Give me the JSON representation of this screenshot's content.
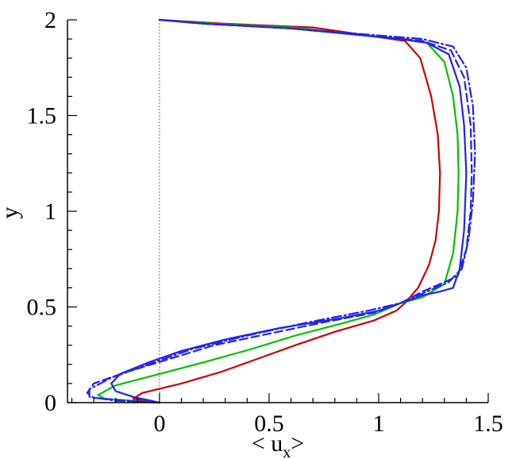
{
  "chart_data": {
    "type": "line",
    "title": "",
    "xlabel": "< u",
    "xlabel_sub": "x",
    "xlabel_close": ">",
    "ylabel": "y",
    "xlim": [
      -0.42,
      1.5
    ],
    "ylim": [
      0,
      2
    ],
    "x_ticks": [
      0,
      0.5,
      1,
      1.5
    ],
    "x_tick_labels": [
      "0",
      "0.5",
      "1",
      "1.5"
    ],
    "y_ticks": [
      0,
      0.5,
      1,
      1.5,
      2
    ],
    "y_tick_labels": [
      "0",
      "0.5",
      "1",
      "1.5",
      "2"
    ],
    "grid": false,
    "zero_line": {
      "x": 0,
      "color": "#888888",
      "style": "dotted"
    },
    "series": [
      {
        "color": "#cc0000",
        "dash": "solid",
        "points": [
          [
            0,
            0
          ],
          [
            -0.12,
            0.02
          ],
          [
            -0.08,
            0.05
          ],
          [
            0.1,
            0.1
          ],
          [
            0.28,
            0.16
          ],
          [
            0.45,
            0.23
          ],
          [
            0.62,
            0.3
          ],
          [
            0.8,
            0.37
          ],
          [
            0.98,
            0.43
          ],
          [
            1.08,
            0.48
          ],
          [
            1.12,
            0.52
          ],
          [
            1.18,
            0.6
          ],
          [
            1.23,
            0.72
          ],
          [
            1.26,
            0.85
          ],
          [
            1.275,
            1.0
          ],
          [
            1.28,
            1.2
          ],
          [
            1.27,
            1.4
          ],
          [
            1.24,
            1.6
          ],
          [
            1.19,
            1.8
          ],
          [
            1.12,
            1.89
          ],
          [
            0.7,
            1.96
          ],
          [
            0.3,
            1.98
          ],
          [
            0,
            2
          ]
        ]
      },
      {
        "color": "#00c000",
        "dash": "solid",
        "points": [
          [
            0,
            0
          ],
          [
            -0.25,
            0.02
          ],
          [
            -0.28,
            0.04
          ],
          [
            -0.2,
            0.09
          ],
          [
            0.0,
            0.15
          ],
          [
            0.2,
            0.21
          ],
          [
            0.42,
            0.28
          ],
          [
            0.62,
            0.35
          ],
          [
            0.82,
            0.41
          ],
          [
            0.98,
            0.46
          ],
          [
            1.1,
            0.52
          ],
          [
            1.2,
            0.55
          ],
          [
            1.3,
            0.62
          ],
          [
            1.34,
            0.78
          ],
          [
            1.36,
            1.0
          ],
          [
            1.365,
            1.2
          ],
          [
            1.36,
            1.4
          ],
          [
            1.34,
            1.6
          ],
          [
            1.3,
            1.78
          ],
          [
            1.22,
            1.88
          ],
          [
            1.1,
            1.9
          ],
          [
            0.6,
            1.96
          ],
          [
            0.25,
            1.98
          ],
          [
            0,
            2
          ]
        ]
      },
      {
        "color": "#2222ee",
        "dash": "solid",
        "points": [
          [
            0,
            0
          ],
          [
            -0.12,
            0.03
          ],
          [
            -0.2,
            0.06
          ],
          [
            -0.22,
            0.1
          ],
          [
            -0.18,
            0.15
          ],
          [
            -0.05,
            0.21
          ],
          [
            0.1,
            0.27
          ],
          [
            0.3,
            0.33
          ],
          [
            0.55,
            0.39
          ],
          [
            0.82,
            0.44
          ],
          [
            1.0,
            0.48
          ],
          [
            1.1,
            0.52
          ],
          [
            1.2,
            0.56
          ],
          [
            1.28,
            0.58
          ],
          [
            1.34,
            0.6
          ],
          [
            1.37,
            0.7
          ],
          [
            1.39,
            0.9
          ],
          [
            1.4,
            1.2
          ],
          [
            1.39,
            1.45
          ],
          [
            1.37,
            1.65
          ],
          [
            1.32,
            1.82
          ],
          [
            1.22,
            1.88
          ],
          [
            1.1,
            1.9
          ],
          [
            0.6,
            1.955
          ],
          [
            0.2,
            1.98
          ],
          [
            0,
            2
          ]
        ]
      },
      {
        "color": "#2222ee",
        "dash": "dashed",
        "points": [
          [
            0,
            0
          ],
          [
            -0.15,
            0.01
          ],
          [
            -0.3,
            0.025
          ],
          [
            -0.33,
            0.05
          ],
          [
            -0.3,
            0.1
          ],
          [
            -0.15,
            0.16
          ],
          [
            0.05,
            0.23
          ],
          [
            0.25,
            0.3
          ],
          [
            0.5,
            0.36
          ],
          [
            0.75,
            0.42
          ],
          [
            0.98,
            0.47
          ],
          [
            1.1,
            0.52
          ],
          [
            1.2,
            0.58
          ],
          [
            1.28,
            0.62
          ],
          [
            1.36,
            0.66
          ],
          [
            1.4,
            0.8
          ],
          [
            1.42,
            1.0
          ],
          [
            1.425,
            1.2
          ],
          [
            1.42,
            1.45
          ],
          [
            1.39,
            1.7
          ],
          [
            1.33,
            1.84
          ],
          [
            1.2,
            1.89
          ],
          [
            0.6,
            1.955
          ],
          [
            0.2,
            1.98
          ],
          [
            0,
            2
          ]
        ]
      },
      {
        "color": "#2222ee",
        "dash": "dashdot",
        "points": [
          [
            0,
            0
          ],
          [
            -0.2,
            0.01
          ],
          [
            -0.32,
            0.03
          ],
          [
            -0.32,
            0.07
          ],
          [
            -0.22,
            0.13
          ],
          [
            -0.05,
            0.2
          ],
          [
            0.15,
            0.28
          ],
          [
            0.4,
            0.35
          ],
          [
            0.68,
            0.42
          ],
          [
            0.95,
            0.48
          ],
          [
            1.1,
            0.52
          ],
          [
            1.22,
            0.58
          ],
          [
            1.32,
            0.63
          ],
          [
            1.38,
            0.7
          ],
          [
            1.41,
            0.85
          ],
          [
            1.43,
            1.05
          ],
          [
            1.44,
            1.3
          ],
          [
            1.43,
            1.55
          ],
          [
            1.4,
            1.75
          ],
          [
            1.34,
            1.86
          ],
          [
            1.2,
            1.9
          ],
          [
            0.6,
            1.955
          ],
          [
            0.2,
            1.98
          ],
          [
            0,
            2
          ]
        ]
      }
    ]
  }
}
